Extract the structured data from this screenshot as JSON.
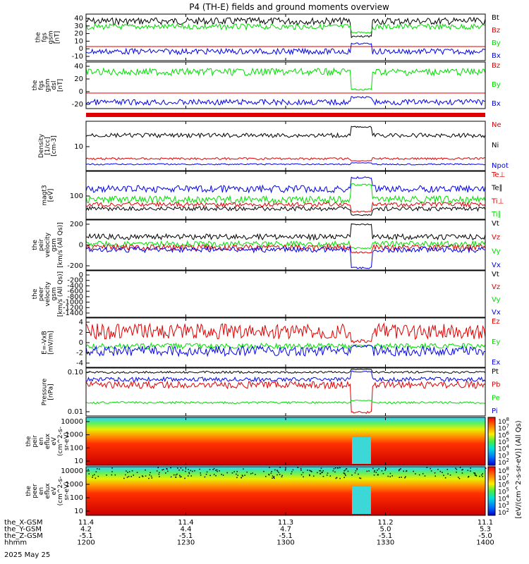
{
  "title": "P4 (TH-E) fields and ground moments overview",
  "date": "2025 May 25",
  "colors": {
    "black": "#000000",
    "red": "#e00000",
    "green": "#00dd00",
    "blue": "#0000ee"
  },
  "chart_data": {
    "type": "line",
    "x_range": [
      "1200",
      "1400"
    ],
    "time_ticks": [
      "1200",
      "1230",
      "1300",
      "1330",
      "1400"
    ],
    "ephemeris": [
      {
        "label": "the_X-GSM",
        "values": [
          "11.4",
          "11.4",
          "11.3",
          "11.2",
          "11.1"
        ]
      },
      {
        "label": "the_Y-GSM",
        "values": [
          "4.2",
          "4.4",
          "4.7",
          "5.0",
          "5.3"
        ]
      },
      {
        "label": "the_Z-GSM",
        "values": [
          "-5.1",
          "-5.1",
          "-5.1",
          "-5.1",
          "-5.0"
        ]
      },
      {
        "label": "hhmm",
        "values": [
          "1200",
          "1230",
          "1300",
          "1330",
          "1400"
        ]
      }
    ],
    "panels": [
      {
        "id": "fgs_gsm",
        "ylabel": [
          "the",
          "fgs",
          "gsm",
          "[nT]"
        ],
        "ylim": [
          -20,
          40
        ],
        "ticks": [
          "40",
          "30",
          "20",
          "10",
          "0",
          "-10"
        ],
        "series": [
          {
            "name": "Bt",
            "color": "black"
          },
          {
            "name": "Bz",
            "color": "red"
          },
          {
            "name": "By",
            "color": "green"
          },
          {
            "name": "Bx",
            "color": "blue"
          }
        ]
      },
      {
        "id": "fgs_dsl",
        "ylabel": [
          "the",
          "fgs",
          "gsm",
          "dsl",
          "[nT]"
        ],
        "ylim": [
          -30,
          45
        ],
        "ticks": [
          "40",
          "20",
          "0",
          "-20"
        ],
        "series": [
          {
            "name": "Bz",
            "color": "red"
          },
          {
            "name": "By",
            "color": "green"
          },
          {
            "name": "Bx",
            "color": "blue"
          }
        ]
      },
      {
        "id": "density",
        "ylabel": [
          "Density",
          "[1/cc]",
          "[cm-3]"
        ],
        "scale": "log",
        "ticks": [
          "10"
        ],
        "series": [
          {
            "name": "Ne",
            "color": "red"
          },
          {
            "name": "Ni",
            "color": "black"
          },
          {
            "name": "Npot",
            "color": "blue"
          }
        ]
      },
      {
        "id": "temperature",
        "ylabel": [
          "magt3",
          "[eV]"
        ],
        "scale": "log",
        "ticks": [
          "100"
        ],
        "series": [
          {
            "name": "Te⊥",
            "color": "red"
          },
          {
            "name": "Te∥",
            "color": "black"
          },
          {
            "name": "Ti⊥",
            "color": "red"
          },
          {
            "name": "Ti∥",
            "color": "green"
          }
        ]
      },
      {
        "id": "peir_velocity",
        "ylabel": [
          "the",
          "peir",
          "velocity",
          "gsm",
          "[km/s (All Qs)]"
        ],
        "ylim": [
          -220,
          330
        ],
        "ticks": [
          "200",
          "0",
          "-200"
        ],
        "series": [
          {
            "name": "Vt",
            "color": "black"
          },
          {
            "name": "Vz",
            "color": "red"
          },
          {
            "name": "Vy",
            "color": "green"
          },
          {
            "name": "Vx",
            "color": "blue"
          }
        ]
      },
      {
        "id": "peer_velocity",
        "ylabel": [
          "the",
          "peer",
          "velocity",
          "gsm",
          "[km/s (All Qs)]"
        ],
        "ylim": [
          -1450,
          20
        ],
        "ticks": [
          "0",
          "-200",
          "-400",
          "-600",
          "-800",
          "-1000",
          "-1200",
          "-1400"
        ],
        "series": [
          {
            "name": "Vt",
            "color": "black"
          },
          {
            "name": "Vz",
            "color": "red"
          },
          {
            "name": "Vy",
            "color": "green"
          },
          {
            "name": "Vx",
            "color": "blue"
          }
        ]
      },
      {
        "id": "efield",
        "ylabel": [
          "E=-VxB",
          "[mV/m]"
        ],
        "ylim": [
          -4,
          4
        ],
        "ticks": [
          "4",
          "2",
          "0",
          "-2",
          "-4"
        ],
        "series": [
          {
            "name": "Ez",
            "color": "red"
          },
          {
            "name": "Ey",
            "color": "green"
          },
          {
            "name": "Ex",
            "color": "blue"
          }
        ]
      },
      {
        "id": "pressure",
        "ylabel": [
          "Pressure",
          "[nPa]"
        ],
        "scale": "log",
        "ylim": [
          0.01,
          1
        ],
        "ticks": [
          "0.10",
          "0.01"
        ],
        "series": [
          {
            "name": "Pt",
            "color": "black"
          },
          {
            "name": "Pb",
            "color": "red"
          },
          {
            "name": "Pe",
            "color": "green"
          },
          {
            "name": "Pi",
            "color": "blue"
          }
        ]
      },
      {
        "id": "peir_spec",
        "ylabel": [
          "the",
          "peir",
          "en",
          "eflux",
          "eV",
          "(cm^2-s-",
          "sr-eV)"
        ],
        "scale": "log",
        "ticks": [
          "10000",
          "1000",
          "100",
          "10"
        ]
      },
      {
        "id": "peer_spec",
        "ylabel": [
          "the",
          "peer",
          "en",
          "eflux",
          "eV",
          "(cm^2-s-",
          "sr-eV)"
        ],
        "scale": "log",
        "ticks": [
          "10000",
          "1000",
          "100",
          "10"
        ]
      }
    ],
    "colorbar": {
      "label": "[eV/(cm^2-s-sr-eV)] (All Qs)",
      "ticks": [
        "10^8",
        "10^7",
        "10^6",
        "10^5",
        "10^4",
        "10^3",
        "10^2"
      ],
      "ticks_lower": [
        "10^8",
        "10^7",
        "10^6",
        "10^5",
        "10^4",
        "10^3",
        "10^2"
      ]
    }
  }
}
